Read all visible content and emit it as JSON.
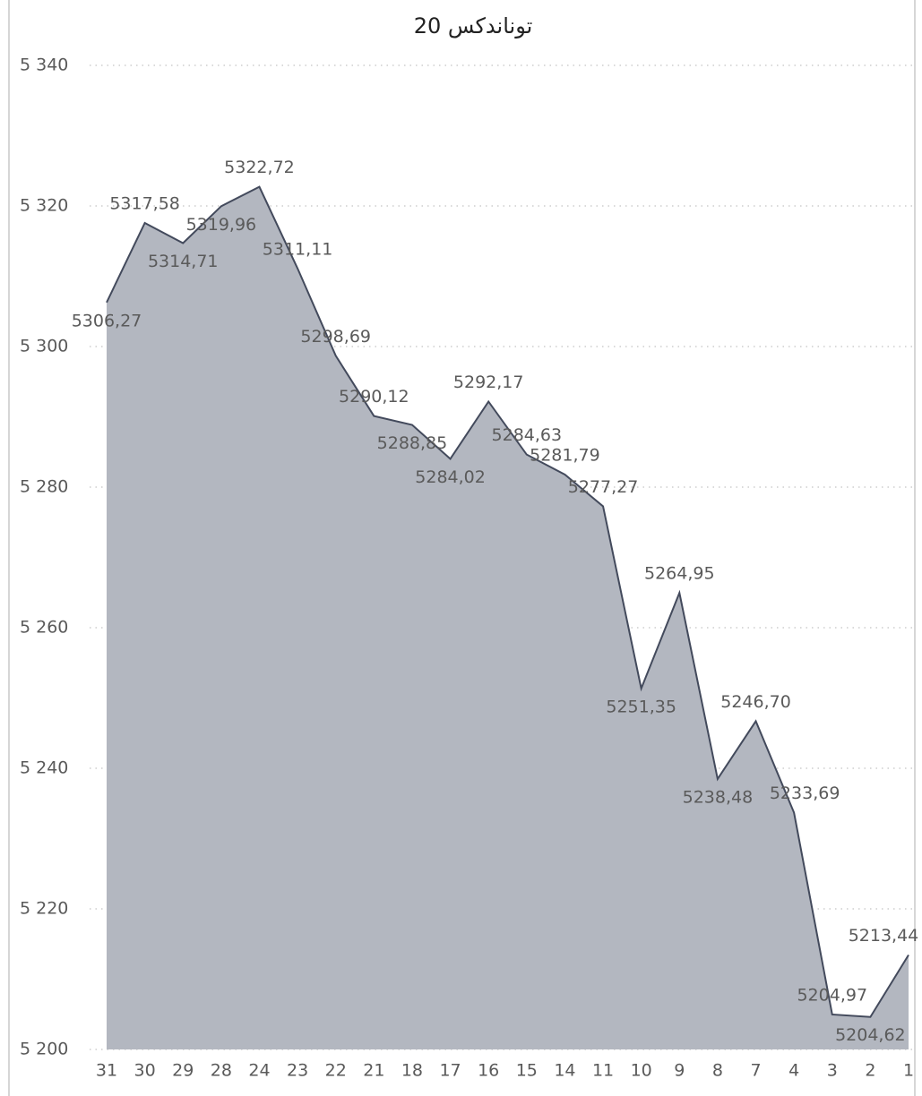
{
  "chart_data": {
    "type": "area",
    "title": "توناندكس 20",
    "categories": [
      "31",
      "30",
      "29",
      "28",
      "24",
      "23",
      "22",
      "21",
      "18",
      "17",
      "16",
      "15",
      "14",
      "11",
      "10",
      "9",
      "8",
      "7",
      "4",
      "3",
      "2",
      "1"
    ],
    "values": [
      5306.27,
      5317.58,
      5314.71,
      5319.96,
      5322.72,
      5311.11,
      5298.69,
      5290.12,
      5288.85,
      5284.02,
      5292.17,
      5284.63,
      5281.79,
      5277.27,
      5251.35,
      5264.95,
      5238.48,
      5246.7,
      5233.69,
      5204.97,
      5204.62,
      5213.44
    ],
    "value_labels": [
      "5306,27",
      "5317,58",
      "5314,71",
      "5319,96",
      "5322,72",
      "5311,11",
      "5298,69",
      "5290,12",
      "5288,85",
      "5284,02",
      "5292,17",
      "5284,63",
      "5281,79",
      "5277,27",
      "5251,35",
      "5264,95",
      "5238,48",
      "5246,70",
      "5233,69",
      "5204,97",
      "5204,62",
      "5213,44"
    ],
    "color": "#b3b7c0",
    "line_color": "#434a5c",
    "ylim": [
      5200,
      5340
    ],
    "yticks": [
      {
        "value": 5200,
        "label": "5 200"
      },
      {
        "value": 5220,
        "label": "5 220"
      },
      {
        "value": 5240,
        "label": "5 240"
      },
      {
        "value": 5260,
        "label": "5 260"
      },
      {
        "value": 5280,
        "label": "5 280"
      },
      {
        "value": 5300,
        "label": "5 300"
      },
      {
        "value": 5320,
        "label": "5 320"
      },
      {
        "value": 5340,
        "label": "5 340"
      }
    ],
    "grid": true
  }
}
